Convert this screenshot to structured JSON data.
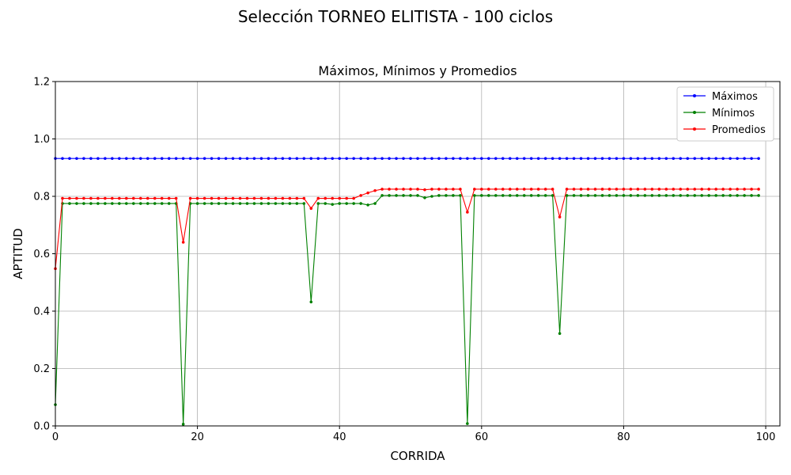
{
  "figure": {
    "suptitle": "Selección TORNEO ELITISTA - 100 ciclos"
  },
  "chart_data": {
    "type": "line",
    "title": "Máximos, Mínimos y Promedios",
    "xlabel": "CORRIDA",
    "ylabel": "APTITUD",
    "xlim": [
      0,
      102
    ],
    "ylim": [
      0.0,
      1.2
    ],
    "xticks": [
      "0",
      "20",
      "40",
      "60",
      "80",
      "100"
    ],
    "yticks": [
      "0.0",
      "0.2",
      "0.4",
      "0.6",
      "0.8",
      "1.0",
      "1.2"
    ],
    "grid": true,
    "legend_position": "top-right",
    "x": [
      0,
      1,
      2,
      3,
      4,
      5,
      6,
      7,
      8,
      9,
      10,
      11,
      12,
      13,
      14,
      15,
      16,
      17,
      18,
      19,
      20,
      21,
      22,
      23,
      24,
      25,
      26,
      27,
      28,
      29,
      30,
      31,
      32,
      33,
      34,
      35,
      36,
      37,
      38,
      39,
      40,
      41,
      42,
      43,
      44,
      45,
      46,
      47,
      48,
      49,
      50,
      51,
      52,
      53,
      54,
      55,
      56,
      57,
      58,
      59,
      60,
      61,
      62,
      63,
      64,
      65,
      66,
      67,
      68,
      69,
      70,
      71,
      72,
      73,
      74,
      75,
      76,
      77,
      78,
      79,
      80,
      81,
      82,
      83,
      84,
      85,
      86,
      87,
      88,
      89,
      90,
      91,
      92,
      93,
      94,
      95,
      96,
      97,
      98,
      99
    ],
    "series": [
      {
        "name": "Máximos",
        "color": "#0000ff",
        "values": [
          0.932,
          0.932,
          0.932,
          0.932,
          0.932,
          0.932,
          0.932,
          0.932,
          0.932,
          0.932,
          0.932,
          0.932,
          0.932,
          0.932,
          0.932,
          0.932,
          0.932,
          0.932,
          0.932,
          0.932,
          0.932,
          0.932,
          0.932,
          0.932,
          0.932,
          0.932,
          0.932,
          0.932,
          0.932,
          0.932,
          0.932,
          0.932,
          0.932,
          0.932,
          0.932,
          0.932,
          0.932,
          0.932,
          0.932,
          0.932,
          0.932,
          0.932,
          0.932,
          0.932,
          0.932,
          0.932,
          0.932,
          0.932,
          0.932,
          0.932,
          0.932,
          0.932,
          0.932,
          0.932,
          0.932,
          0.932,
          0.932,
          0.932,
          0.932,
          0.932,
          0.932,
          0.932,
          0.932,
          0.932,
          0.932,
          0.932,
          0.932,
          0.932,
          0.932,
          0.932,
          0.932,
          0.932,
          0.932,
          0.932,
          0.932,
          0.932,
          0.932,
          0.932,
          0.932,
          0.932,
          0.932,
          0.932,
          0.932,
          0.932,
          0.932,
          0.932,
          0.932,
          0.932,
          0.932,
          0.932,
          0.932,
          0.932,
          0.932,
          0.932,
          0.932,
          0.932,
          0.932,
          0.932,
          0.932,
          0.932
        ]
      },
      {
        "name": "Mínimos",
        "color": "#008000",
        "values": [
          0.074,
          0.775,
          0.775,
          0.775,
          0.775,
          0.775,
          0.775,
          0.775,
          0.775,
          0.775,
          0.775,
          0.775,
          0.775,
          0.775,
          0.775,
          0.775,
          0.775,
          0.775,
          0.006,
          0.775,
          0.775,
          0.775,
          0.775,
          0.775,
          0.775,
          0.775,
          0.775,
          0.775,
          0.775,
          0.775,
          0.775,
          0.775,
          0.775,
          0.775,
          0.775,
          0.775,
          0.432,
          0.775,
          0.775,
          0.772,
          0.775,
          0.775,
          0.775,
          0.775,
          0.77,
          0.775,
          0.803,
          0.803,
          0.803,
          0.803,
          0.803,
          0.803,
          0.795,
          0.8,
          0.803,
          0.803,
          0.803,
          0.803,
          0.008,
          0.803,
          0.803,
          0.803,
          0.803,
          0.803,
          0.803,
          0.803,
          0.803,
          0.803,
          0.803,
          0.803,
          0.803,
          0.322,
          0.803,
          0.803,
          0.803,
          0.803,
          0.803,
          0.803,
          0.803,
          0.803,
          0.803,
          0.803,
          0.803,
          0.803,
          0.803,
          0.803,
          0.803,
          0.803,
          0.803,
          0.803,
          0.803,
          0.803,
          0.803,
          0.803,
          0.803,
          0.803,
          0.803,
          0.803,
          0.803,
          0.803
        ]
      },
      {
        "name": "Promedios",
        "color": "#ff0000",
        "values": [
          0.548,
          0.793,
          0.793,
          0.793,
          0.793,
          0.793,
          0.793,
          0.793,
          0.793,
          0.793,
          0.793,
          0.793,
          0.793,
          0.793,
          0.793,
          0.793,
          0.793,
          0.793,
          0.64,
          0.793,
          0.793,
          0.793,
          0.793,
          0.793,
          0.793,
          0.793,
          0.793,
          0.793,
          0.793,
          0.793,
          0.793,
          0.793,
          0.793,
          0.793,
          0.793,
          0.793,
          0.758,
          0.793,
          0.793,
          0.793,
          0.793,
          0.793,
          0.793,
          0.803,
          0.812,
          0.82,
          0.825,
          0.825,
          0.825,
          0.825,
          0.825,
          0.825,
          0.823,
          0.825,
          0.825,
          0.825,
          0.825,
          0.825,
          0.745,
          0.825,
          0.825,
          0.825,
          0.825,
          0.825,
          0.825,
          0.825,
          0.825,
          0.825,
          0.825,
          0.825,
          0.825,
          0.728,
          0.825,
          0.825,
          0.825,
          0.825,
          0.825,
          0.825,
          0.825,
          0.825,
          0.825,
          0.825,
          0.825,
          0.825,
          0.825,
          0.825,
          0.825,
          0.825,
          0.825,
          0.825,
          0.825,
          0.825,
          0.825,
          0.825,
          0.825,
          0.825,
          0.825,
          0.825,
          0.825,
          0.825
        ]
      }
    ]
  }
}
